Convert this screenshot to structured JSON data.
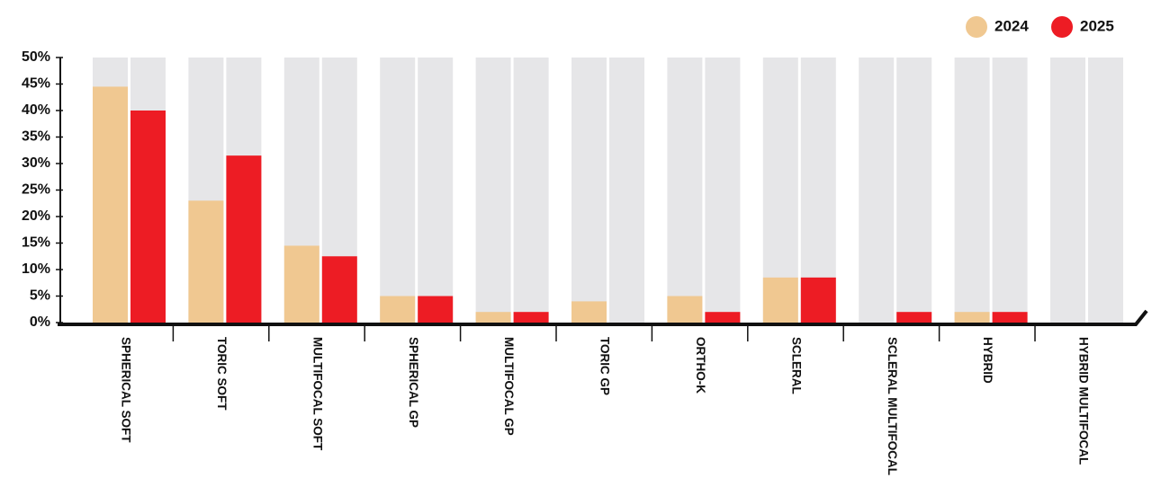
{
  "chart_data": {
    "type": "bar",
    "categories": [
      "SPHERICAL SOFT",
      "TORIC SOFT",
      "MULTIFOCAL SOFT",
      "SPHERICAL GP",
      "MULTIFOCAL GP",
      "TORIC GP",
      "ORTHO-K",
      "SCLERAL",
      "SCLERAL MULTIFOCAL",
      "HYBRID",
      "HYBRID MULTIFOCAL"
    ],
    "series": [
      {
        "name": "2024",
        "color": "#f0c891",
        "values": [
          44.5,
          23,
          14.5,
          5,
          2,
          4,
          5,
          8.5,
          0,
          2,
          0
        ]
      },
      {
        "name": "2025",
        "color": "#ed1c24",
        "values": [
          40,
          31.5,
          12.5,
          5,
          2,
          0,
          2,
          8.5,
          2,
          2,
          0
        ]
      }
    ],
    "ylim": [
      0,
      50
    ],
    "yticks": [
      {
        "value": 0,
        "label": "0%"
      },
      {
        "value": 5,
        "label": "5%"
      },
      {
        "value": 10,
        "label": "10%"
      },
      {
        "value": 15,
        "label": "15%"
      },
      {
        "value": 20,
        "label": "20%"
      },
      {
        "value": 25,
        "label": "25%"
      },
      {
        "value": 30,
        "label": "30%"
      },
      {
        "value": 35,
        "label": "35%"
      },
      {
        "value": 40,
        "label": "40%"
      },
      {
        "value": 45,
        "label": "45%"
      },
      {
        "value": 50,
        "label": "50%"
      }
    ],
    "legend": "top-right"
  }
}
